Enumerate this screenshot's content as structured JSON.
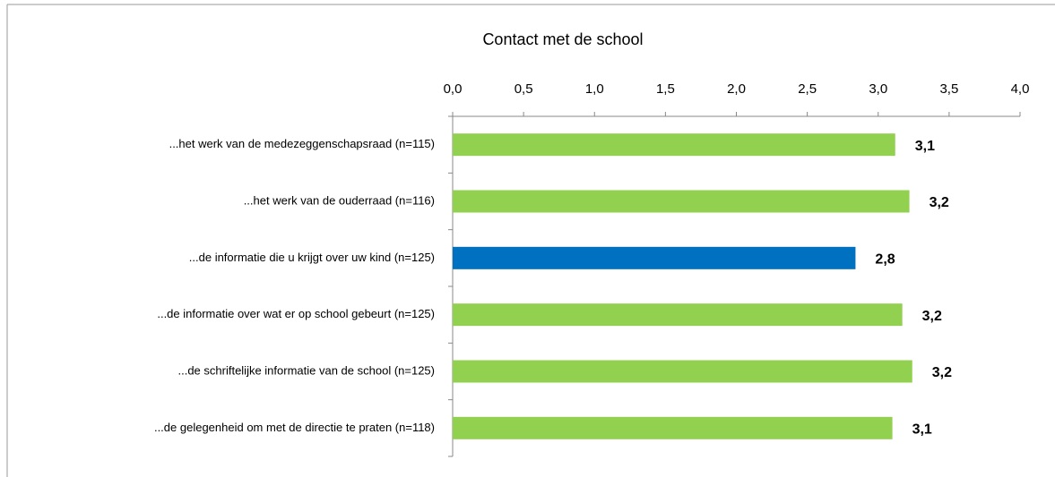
{
  "chart_data": {
    "type": "hbar",
    "title": "Contact met de school",
    "categories": [
      "...het werk van de medezeggenschapsraad (n=115)",
      "...het werk van de ouderraad (n=116)",
      "...de informatie die u krijgt over uw kind (n=125)",
      "...de informatie over wat er op school gebeurt (n=125)",
      "...de schriftelijke informatie van de school (n=125)",
      "...de gelegenheid om met de directie te praten (n=118)"
    ],
    "values": [
      3.12,
      3.22,
      2.84,
      3.17,
      3.24,
      3.1
    ],
    "value_labels": [
      "3,1",
      "3,2",
      "2,8",
      "3,2",
      "3,2",
      "3,1"
    ],
    "colors": [
      "#92d050",
      "#92d050",
      "#0070c0",
      "#92d050",
      "#92d050",
      "#92d050"
    ],
    "xlim": [
      0,
      4
    ],
    "xticks": [
      {
        "value": 0,
        "label": "0,0"
      },
      {
        "value": 0.5,
        "label": "0,5"
      },
      {
        "value": 1,
        "label": "1,0"
      },
      {
        "value": 1.5,
        "label": "1,5"
      },
      {
        "value": 2,
        "label": "2,0"
      },
      {
        "value": 2.5,
        "label": "2,5"
      },
      {
        "value": 3,
        "label": "3,0"
      },
      {
        "value": 3.5,
        "label": "3,5"
      },
      {
        "value": 4,
        "label": "4,0"
      }
    ]
  }
}
